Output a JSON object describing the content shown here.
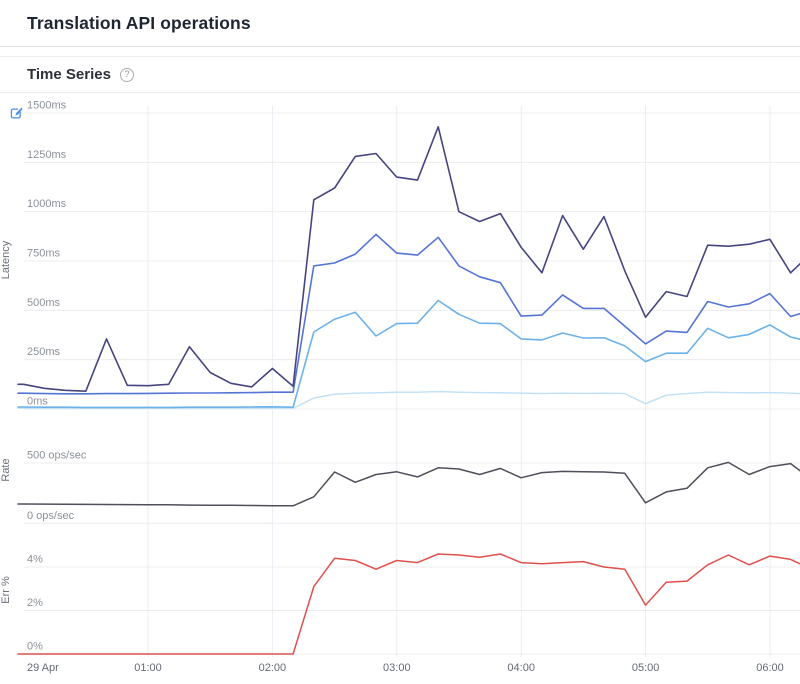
{
  "page": {
    "title": "Translation API operations"
  },
  "panel": {
    "title": "Time Series",
    "help_glyph": "?"
  },
  "colors": {
    "latency_p_high": "#46457f",
    "latency_p_mid": "#5575d5",
    "latency_p_low": "#6cb2ea",
    "latency_p_base": "#bfe0f6",
    "rate_line": "#4e4f5a",
    "error_line": "#e0504d",
    "edit_icon": "#4a90e2"
  },
  "chart_data": {
    "type": "line",
    "x_start_label": "29 Apr",
    "x_step_minutes": 10,
    "x_axis_labels": [
      {
        "text": "29 Apr",
        "hour": 0,
        "anchor": "start"
      },
      {
        "text": "01:00",
        "hour": 1,
        "anchor": "middle"
      },
      {
        "text": "02:00",
        "hour": 2,
        "anchor": "middle"
      },
      {
        "text": "03:00",
        "hour": 3,
        "anchor": "middle"
      },
      {
        "text": "04:00",
        "hour": 4,
        "anchor": "middle"
      },
      {
        "text": "05:00",
        "hour": 5,
        "anchor": "middle"
      },
      {
        "text": "06:00",
        "hour": 6,
        "anchor": "middle"
      }
    ],
    "panels": [
      {
        "id": "latency",
        "axis_label": "Latency",
        "unit": "ms",
        "ylim": [
          0,
          1500
        ],
        "grid": true,
        "yticks": [
          {
            "value": 1500,
            "text": "1500ms"
          },
          {
            "value": 1250,
            "text": "1250ms"
          },
          {
            "value": 1000,
            "text": "1000ms"
          },
          {
            "value": 750,
            "text": "750ms"
          },
          {
            "value": 500,
            "text": "500ms"
          },
          {
            "value": 250,
            "text": "250ms"
          },
          {
            "value": 0,
            "text": "0ms"
          }
        ],
        "series": [
          {
            "id": "latency-line-4",
            "color": "#bfe0f6",
            "width": 1.4,
            "values": [
              4,
              4,
              4,
              4,
              4,
              4,
              4,
              4,
              4,
              4,
              4,
              4,
              5,
              4,
              55,
              75,
              80,
              82,
              85,
              85,
              88,
              85,
              83,
              82,
              80,
              78,
              80,
              79,
              80,
              78,
              27,
              70,
              78,
              85,
              83,
              82,
              83,
              80,
              75
            ]
          },
          {
            "id": "latency-line-3",
            "color": "#6cb2ea",
            "width": 1.6,
            "values": [
              10,
              9,
              9,
              8,
              8,
              8,
              8,
              8,
              9,
              9,
              9,
              10,
              11,
              9,
              390,
              455,
              490,
              370,
              433,
              435,
              550,
              480,
              435,
              433,
              355,
              350,
              385,
              360,
              361,
              320,
              240,
              283,
              283,
              409,
              361,
              378,
              426,
              365,
              340
            ]
          },
          {
            "id": "latency-line-2",
            "color": "#5575d5",
            "width": 1.6,
            "values": [
              80,
              78,
              77,
              77,
              78,
              78,
              79,
              80,
              81,
              81,
              82,
              83,
              85,
              85,
              725,
              740,
              785,
              885,
              790,
              780,
              870,
              725,
              670,
              640,
              471,
              476,
              578,
              510,
              510,
              420,
              330,
              395,
              388,
              545,
              517,
              533,
              585,
              469,
              500
            ]
          },
          {
            "id": "latency-line-1",
            "color": "#46457f",
            "width": 1.6,
            "values": [
              125,
              105,
              95,
              90,
              355,
              120,
              118,
              125,
              315,
              185,
              130,
              112,
              205,
              115,
              1060,
              1120,
              1280,
              1295,
              1175,
              1160,
              1430,
              1000,
              950,
              990,
              820,
              690,
              980,
              810,
              975,
              700,
              465,
              595,
              570,
              830,
              825,
              835,
              860,
              690,
              790
            ]
          }
        ]
      },
      {
        "id": "rate",
        "axis_label": "Rate",
        "unit": "ops/sec",
        "ylim": [
          0,
          500
        ],
        "grid": true,
        "yticks": [
          {
            "value": 500,
            "text": "500 ops/sec"
          },
          {
            "value": 0,
            "text": "0 ops/sec"
          }
        ],
        "series": [
          {
            "id": "rate-line-1",
            "color": "#4e4f5a",
            "width": 1.5,
            "values": [
              160,
              159,
              158,
              157,
              156,
              155,
              154,
              153,
              151,
              150,
              149,
              148,
              146,
              145,
              220,
              425,
              340,
              405,
              427,
              385,
              460,
              450,
              405,
              455,
              377,
              420,
              430,
              428,
              425,
              415,
              170,
              260,
              290,
              460,
              505,
              405,
              470,
              495,
              365
            ]
          }
        ]
      },
      {
        "id": "err",
        "axis_label": "Err %",
        "unit": "%",
        "ylim": [
          0,
          4
        ],
        "grid": true,
        "yticks": [
          {
            "value": 4,
            "text": "4%"
          },
          {
            "value": 2,
            "text": "2%"
          },
          {
            "value": 0,
            "text": "0%"
          }
        ],
        "series": [
          {
            "id": "err-line-1",
            "color": "#e0504d",
            "width": 1.5,
            "values": [
              0,
              0,
              0,
              0,
              0,
              0,
              0,
              0,
              0,
              0,
              0,
              0,
              0,
              0,
              3.1,
              4.4,
              4.3,
              3.9,
              4.3,
              4.2,
              4.6,
              4.55,
              4.45,
              4.6,
              4.2,
              4.15,
              4.2,
              4.25,
              4.0,
              3.9,
              2.25,
              3.3,
              3.35,
              4.1,
              4.55,
              4.1,
              4.5,
              4.35,
              3.9
            ]
          }
        ]
      }
    ]
  }
}
